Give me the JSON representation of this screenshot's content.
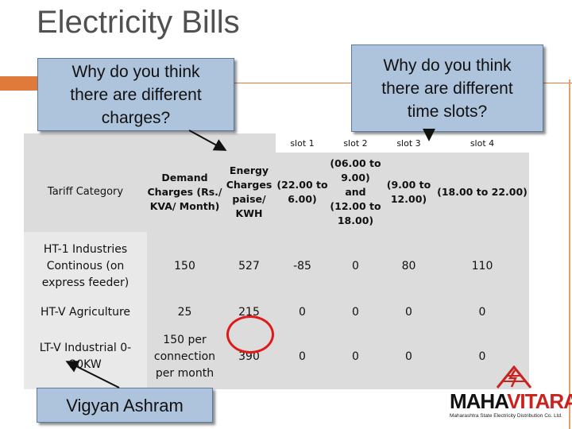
{
  "title": "Electricity Bills",
  "callouts": {
    "left": "Why do you think\nthere are different\ncharges?",
    "right": "Why do you think\nthere are  different\ntime slots?",
    "bottom": "Vigyan Ashram"
  },
  "table": {
    "slot_labels": [
      "slot 1",
      "slot 2",
      "slot 3",
      "slot 4"
    ],
    "headers": {
      "category": "Tariff Category",
      "demand": "Demand\nCharges (Rs./\nKVA/ Month)",
      "energy": "Energy\nCharges\npaise/\nKWH",
      "slot1": "(22.00 to\n6.00)",
      "slot2": "(06.00 to\n9.00) and\n(12.00 to\n18.00)",
      "slot3": "(9.00 to\n12.00)",
      "slot4": "(18.00 to 22.00)"
    },
    "rows": [
      {
        "category": "HT-1 Industries\nContinous (on\nexpress feeder)",
        "demand": "150",
        "energy": "527",
        "slot1": "-85",
        "slot2": "0",
        "slot3": "80",
        "slot4": "110"
      },
      {
        "category": "HT-V Agriculture",
        "demand": "25",
        "energy": "215",
        "slot1": "0",
        "slot2": "0",
        "slot3": "0",
        "slot4": "0"
      },
      {
        "category": "LT-V Industrial 0-\n20KW",
        "demand": "150 per\nconnection\nper month",
        "energy": "390",
        "slot1": "0",
        "slot2": "0",
        "slot3": "0",
        "slot4": "0"
      }
    ]
  },
  "logo": {
    "brand_part1": "MAHA",
    "brand_part2": "VITARAN",
    "subtitle": "Maharashtra State Electricity Distribution Co. Ltd.",
    "icon": "lightning-tower-logo",
    "colors": {
      "red": "#c8231f",
      "dark": "#111111"
    }
  },
  "colors": {
    "callout_bg": "#aec4dc",
    "accent": "#e07a3a",
    "table_grey": "#dcdcdc",
    "highlight_circle": "#e01818"
  }
}
